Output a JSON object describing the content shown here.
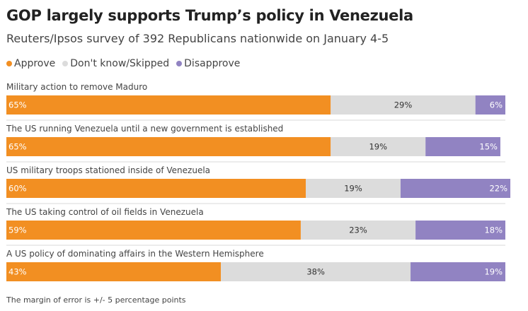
{
  "header": {
    "title": "GOP largely supports Trump’s policy in Venezuela",
    "subtitle": "Reuters/Ipsos survey of 392 Republicans nationwide on January 4-5"
  },
  "legend": [
    {
      "label": "Approve",
      "color": "#f28f22"
    },
    {
      "label": "Don't know/Skipped",
      "color": "#dcdcdc"
    },
    {
      "label": "Disapprove",
      "color": "#9183c2"
    }
  ],
  "chart_data": {
    "type": "bar",
    "orientation": "horizontal",
    "stacked": true,
    "title": "GOP largely supports Trump’s policy in Venezuela",
    "subtitle": "Reuters/Ipsos survey of 392 Republicans nationwide on January 4-5",
    "categories": [
      "Military action to remove Maduro",
      "The US running Venezuela until a new government is established",
      "US military troops stationed inside of Venezuela",
      "The US taking control of oil fields in Venezuela",
      "A US policy of dominating affairs in the Western Hemisphere"
    ],
    "series": [
      {
        "name": "Approve",
        "color": "#f28f22",
        "values": [
          65,
          65,
          60,
          59,
          43
        ]
      },
      {
        "name": "Don't know/Skipped",
        "color": "#dcdcdc",
        "values": [
          29,
          19,
          19,
          23,
          38
        ]
      },
      {
        "name": "Disapprove",
        "color": "#9183c2",
        "values": [
          6,
          15,
          22,
          18,
          19
        ]
      }
    ],
    "value_suffix": "%",
    "xlim": [
      0,
      100
    ]
  },
  "footer": {
    "note": "The margin of error is +/- 5 percentage points"
  }
}
